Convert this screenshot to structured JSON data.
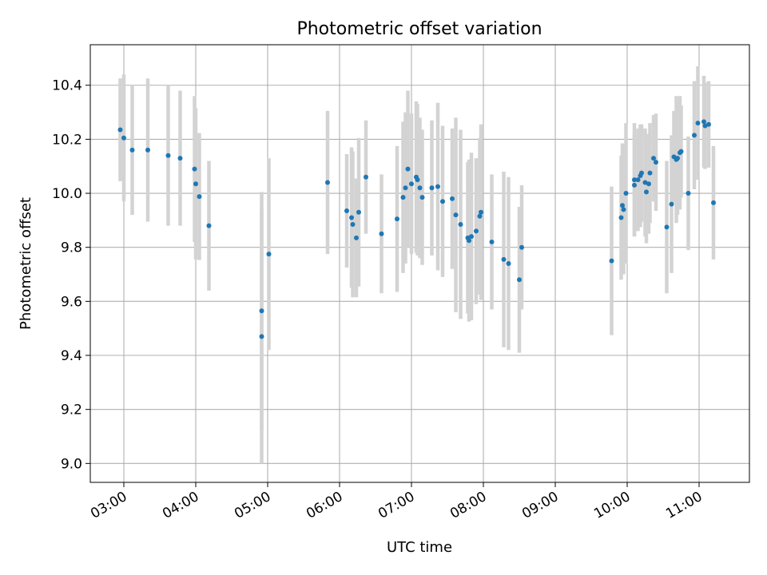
{
  "chart_data": {
    "type": "scatter",
    "title": "Photometric offset variation",
    "xlabel": "UTC time",
    "ylabel": "Photometric offset",
    "grid": true,
    "legend": "none",
    "xlim": [
      "02:32",
      "11:42"
    ],
    "ylim": [
      8.93,
      10.55
    ],
    "xticks": [
      "03:00",
      "04:00",
      "05:00",
      "06:00",
      "07:00",
      "08:00",
      "09:00",
      "10:00",
      "11:00"
    ],
    "yticks": [
      "9.0",
      "9.2",
      "9.4",
      "9.6",
      "9.8",
      "10.0",
      "10.2",
      "10.4"
    ],
    "colors": {
      "points": "#1f77b4",
      "errorbars": "#d3d3d3",
      "grid": "#b0b0b0"
    },
    "series": [
      {
        "points": [
          {
            "x": "02:57",
            "y": 10.235,
            "err": 0.19
          },
          {
            "x": "03:00",
            "y": 10.205,
            "err": 0.235
          },
          {
            "x": "03:07",
            "y": 10.16,
            "err": 0.24
          },
          {
            "x": "03:20",
            "y": 10.16,
            "err": 0.265
          },
          {
            "x": "03:37",
            "y": 10.14,
            "err": 0.26
          },
          {
            "x": "03:47",
            "y": 10.13,
            "err": 0.25
          },
          {
            "x": "03:59",
            "y": 10.09,
            "err": 0.27
          },
          {
            "x": "04:00",
            "y": 10.035,
            "err": 0.28
          },
          {
            "x": "04:03",
            "y": 9.988,
            "err": 0.235
          },
          {
            "x": "04:11",
            "y": 9.88,
            "err": 0.24
          },
          {
            "x": "04:55",
            "y": 9.565,
            "err": 0.44
          },
          {
            "x": "04:55",
            "y": 9.47,
            "err": 0.47
          },
          {
            "x": "05:01",
            "y": 9.775,
            "err": 0.355
          },
          {
            "x": "05:50",
            "y": 10.04,
            "err": 0.265
          },
          {
            "x": "06:06",
            "y": 9.935,
            "err": 0.21
          },
          {
            "x": "06:10",
            "y": 9.91,
            "err": 0.26
          },
          {
            "x": "06:11",
            "y": 9.885,
            "err": 0.27
          },
          {
            "x": "06:14",
            "y": 9.835,
            "err": 0.22
          },
          {
            "x": "06:16",
            "y": 9.93,
            "err": 0.275
          },
          {
            "x": "06:22",
            "y": 10.06,
            "err": 0.21
          },
          {
            "x": "06:35",
            "y": 9.85,
            "err": 0.22
          },
          {
            "x": "06:48",
            "y": 9.905,
            "err": 0.27
          },
          {
            "x": "06:53",
            "y": 9.985,
            "err": 0.28
          },
          {
            "x": "06:55",
            "y": 10.02,
            "err": 0.28
          },
          {
            "x": "06:57",
            "y": 10.09,
            "err": 0.29
          },
          {
            "x": "07:00",
            "y": 10.035,
            "err": 0.26
          },
          {
            "x": "07:04",
            "y": 10.06,
            "err": 0.28
          },
          {
            "x": "07:05",
            "y": 10.05,
            "err": 0.28
          },
          {
            "x": "07:07",
            "y": 10.02,
            "err": 0.26
          },
          {
            "x": "07:09",
            "y": 9.985,
            "err": 0.25
          },
          {
            "x": "07:17",
            "y": 10.02,
            "err": 0.25
          },
          {
            "x": "07:22",
            "y": 10.025,
            "err": 0.31
          },
          {
            "x": "07:26",
            "y": 9.97,
            "err": 0.28
          },
          {
            "x": "07:34",
            "y": 9.98,
            "err": 0.26
          },
          {
            "x": "07:37",
            "y": 9.92,
            "err": 0.36
          },
          {
            "x": "07:41",
            "y": 9.885,
            "err": 0.35
          },
          {
            "x": "07:47",
            "y": 9.835,
            "err": 0.28
          },
          {
            "x": "07:48",
            "y": 9.825,
            "err": 0.3
          },
          {
            "x": "07:50",
            "y": 9.84,
            "err": 0.31
          },
          {
            "x": "07:54",
            "y": 9.86,
            "err": 0.27
          },
          {
            "x": "07:57",
            "y": 9.915,
            "err": 0.29
          },
          {
            "x": "07:58",
            "y": 9.93,
            "err": 0.325
          },
          {
            "x": "08:07",
            "y": 9.82,
            "err": 0.25
          },
          {
            "x": "08:17",
            "y": 9.755,
            "err": 0.325
          },
          {
            "x": "08:21",
            "y": 9.74,
            "err": 0.32
          },
          {
            "x": "08:30",
            "y": 9.68,
            "err": 0.27
          },
          {
            "x": "08:32",
            "y": 9.8,
            "err": 0.23
          },
          {
            "x": "09:47",
            "y": 9.75,
            "err": 0.275
          },
          {
            "x": "09:55",
            "y": 9.91,
            "err": 0.23
          },
          {
            "x": "09:56",
            "y": 9.955,
            "err": 0.23
          },
          {
            "x": "09:57",
            "y": 9.94,
            "err": 0.24
          },
          {
            "x": "09:59",
            "y": 10.0,
            "err": 0.26
          },
          {
            "x": "10:06",
            "y": 10.05,
            "err": 0.21
          },
          {
            "x": "10:06",
            "y": 10.03,
            "err": 0.19
          },
          {
            "x": "10:09",
            "y": 10.05,
            "err": 0.19
          },
          {
            "x": "10:11",
            "y": 10.065,
            "err": 0.19
          },
          {
            "x": "10:12",
            "y": 10.075,
            "err": 0.18
          },
          {
            "x": "10:15",
            "y": 10.04,
            "err": 0.2
          },
          {
            "x": "10:16",
            "y": 10.005,
            "err": 0.19
          },
          {
            "x": "10:18",
            "y": 10.035,
            "err": 0.185
          },
          {
            "x": "10:19",
            "y": 10.075,
            "err": 0.185
          },
          {
            "x": "10:22",
            "y": 10.13,
            "err": 0.16
          },
          {
            "x": "10:24",
            "y": 10.115,
            "err": 0.18
          },
          {
            "x": "10:33",
            "y": 9.875,
            "err": 0.245
          },
          {
            "x": "10:37",
            "y": 9.96,
            "err": 0.255
          },
          {
            "x": "10:39",
            "y": 10.135,
            "err": 0.17
          },
          {
            "x": "10:41",
            "y": 10.125,
            "err": 0.235
          },
          {
            "x": "10:42",
            "y": 10.13,
            "err": 0.21
          },
          {
            "x": "10:44",
            "y": 10.15,
            "err": 0.21
          },
          {
            "x": "10:45",
            "y": 10.155,
            "err": 0.17
          },
          {
            "x": "10:51",
            "y": 10.0,
            "err": 0.21
          },
          {
            "x": "10:56",
            "y": 10.215,
            "err": 0.2
          },
          {
            "x": "10:59",
            "y": 10.26,
            "err": 0.21
          },
          {
            "x": "11:04",
            "y": 10.265,
            "err": 0.17
          },
          {
            "x": "11:05",
            "y": 10.25,
            "err": 0.16
          },
          {
            "x": "11:08",
            "y": 10.255,
            "err": 0.16
          },
          {
            "x": "11:12",
            "y": 9.965,
            "err": 0.21
          }
        ]
      }
    ]
  }
}
